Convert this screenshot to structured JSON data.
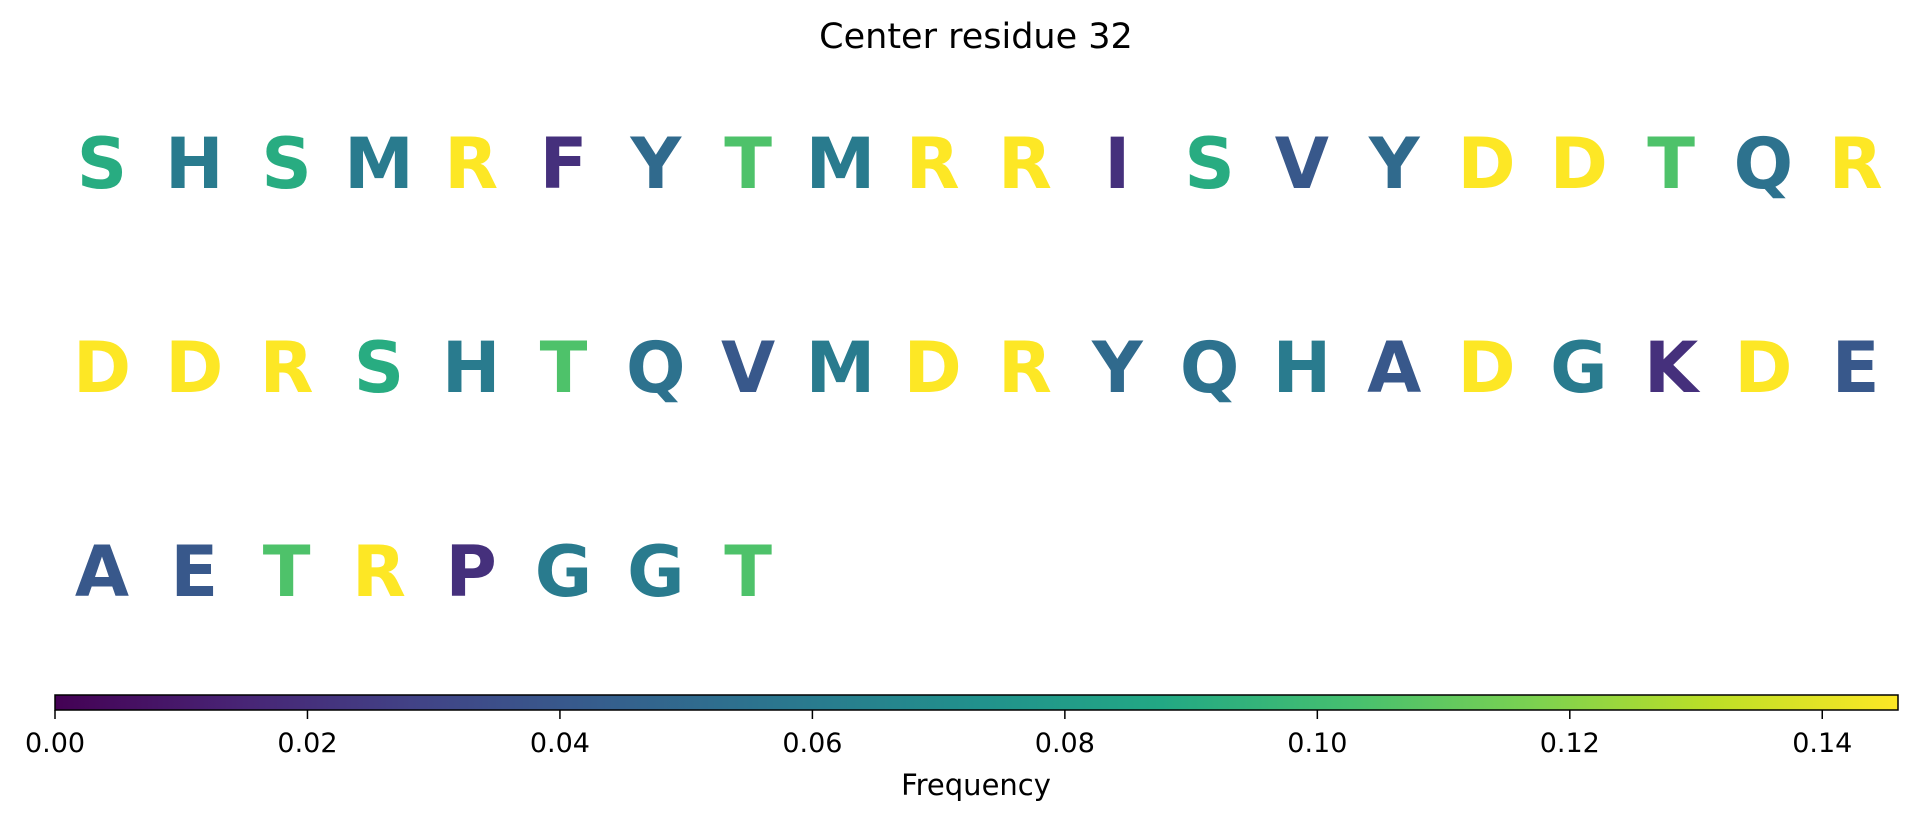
{
  "chart_data": {
    "type": "heatmap",
    "title": "Center residue 32",
    "colormap": "viridis",
    "colorbar": {
      "label": "Frequency",
      "range": [
        0,
        0.146
      ],
      "ticks": [
        "0.00",
        "0.02",
        "0.04",
        "0.06",
        "0.08",
        "0.10",
        "0.12",
        "0.14"
      ],
      "tick_values": [
        0,
        0.02,
        0.04,
        0.06,
        0.08,
        0.1,
        0.12,
        0.14
      ],
      "orientation": "horizontal"
    },
    "residues": [
      {
        "letter": "S",
        "value": 0.09
      },
      {
        "letter": "H",
        "value": 0.06
      },
      {
        "letter": "S",
        "value": 0.09
      },
      {
        "letter": "M",
        "value": 0.06
      },
      {
        "letter": "R",
        "value": 0.146
      },
      {
        "letter": "F",
        "value": 0.02
      },
      {
        "letter": "Y",
        "value": 0.05
      },
      {
        "letter": "T",
        "value": 0.105
      },
      {
        "letter": "M",
        "value": 0.06
      },
      {
        "letter": "R",
        "value": 0.146
      },
      {
        "letter": "R",
        "value": 0.146
      },
      {
        "letter": "I",
        "value": 0.02
      },
      {
        "letter": "S",
        "value": 0.09
      },
      {
        "letter": "V",
        "value": 0.04
      },
      {
        "letter": "Y",
        "value": 0.05
      },
      {
        "letter": "D",
        "value": 0.146
      },
      {
        "letter": "D",
        "value": 0.146
      },
      {
        "letter": "T",
        "value": 0.105
      },
      {
        "letter": "Q",
        "value": 0.055
      },
      {
        "letter": "R",
        "value": 0.146
      },
      {
        "letter": "D",
        "value": 0.146
      },
      {
        "letter": "D",
        "value": 0.146
      },
      {
        "letter": "R",
        "value": 0.146
      },
      {
        "letter": "S",
        "value": 0.09
      },
      {
        "letter": "H",
        "value": 0.06
      },
      {
        "letter": "T",
        "value": 0.105
      },
      {
        "letter": "Q",
        "value": 0.055
      },
      {
        "letter": "V",
        "value": 0.04
      },
      {
        "letter": "M",
        "value": 0.06
      },
      {
        "letter": "D",
        "value": 0.146
      },
      {
        "letter": "R",
        "value": 0.146
      },
      {
        "letter": "Y",
        "value": 0.05
      },
      {
        "letter": "Q",
        "value": 0.055
      },
      {
        "letter": "H",
        "value": 0.06
      },
      {
        "letter": "A",
        "value": 0.04
      },
      {
        "letter": "D",
        "value": 0.146
      },
      {
        "letter": "G",
        "value": 0.06
      },
      {
        "letter": "K",
        "value": 0.02
      },
      {
        "letter": "D",
        "value": 0.146
      },
      {
        "letter": "E",
        "value": 0.04
      },
      {
        "letter": "A",
        "value": 0.04
      },
      {
        "letter": "E",
        "value": 0.04
      },
      {
        "letter": "T",
        "value": 0.105
      },
      {
        "letter": "R",
        "value": 0.146
      },
      {
        "letter": "P",
        "value": 0.02
      },
      {
        "letter": "G",
        "value": 0.06
      },
      {
        "letter": "G",
        "value": 0.06
      },
      {
        "letter": "T",
        "value": 0.105
      }
    ],
    "residues_per_row": 20
  }
}
